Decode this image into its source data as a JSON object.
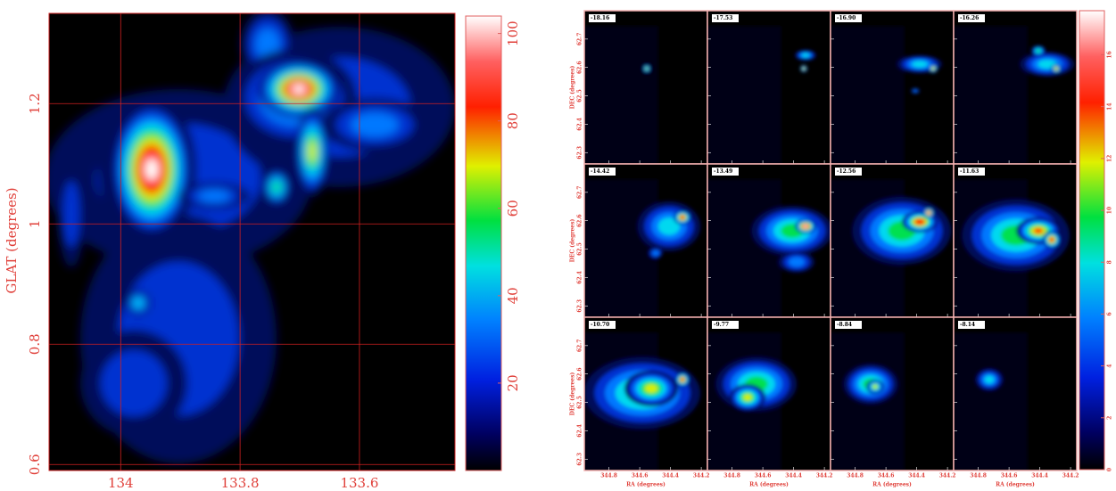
{
  "chart_data": [
    {
      "type": "image",
      "ylabel": "GLAT (degrees)",
      "xlim": [
        134.12,
        133.44
      ],
      "ylim": [
        0.59,
        1.35
      ],
      "xticks": [
        134,
        133.8,
        133.6
      ],
      "yticks": [
        0.6,
        0.8,
        1,
        1.2
      ],
      "grid": true,
      "colorbar": {
        "lim": [
          0,
          104
        ],
        "ticks": [
          20,
          40,
          60,
          80,
          100
        ]
      }
    },
    {
      "type": "channel-maps",
      "xlabel": "RA (degrees)",
      "ylabel": "DEC (degrees)",
      "panels": [
        "-18.16",
        "-17.53",
        "-16.90",
        "-16.26",
        "-14.42",
        "-13.49",
        "-12.56",
        "-11.63",
        "-10.70",
        "-9.77",
        "-8.84",
        "-8.14"
      ],
      "xlim": [
        344.96,
        344.16
      ],
      "ylim": [
        62.26,
        62.8
      ],
      "xticks": [
        344.8,
        344.6,
        344.4,
        344.2
      ],
      "yticks": [
        62.3,
        62.4,
        62.5,
        62.6,
        62.7
      ],
      "colorbar": {
        "lim": [
          0,
          17.7
        ],
        "ticks": [
          0,
          2,
          4,
          6,
          8,
          10,
          12,
          14,
          16
        ]
      }
    }
  ]
}
